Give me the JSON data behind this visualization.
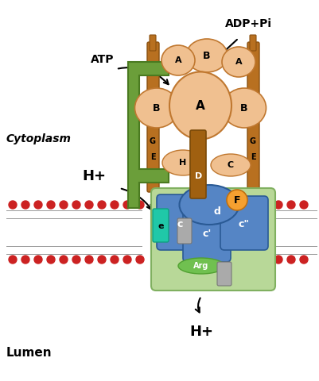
{
  "background_color": "#ffffff",
  "lipid_line_color": "#999999",
  "head_color": "#cc2222",
  "cytoplasm_label": "Cytoplasm",
  "lumen_label": "Lumen",
  "atp_label": "ATP",
  "adppi_label": "ADP+Pi",
  "hplus_top_label": "H+",
  "hplus_bottom_label": "H+",
  "subunit_color": "#f0c090",
  "subunit_edge": "#c07830",
  "stalk_color": "#a06010",
  "stalk_dark": "#7a4a08",
  "stator_color": "#6b9e3a",
  "stator_dark": "#4a7a20",
  "vo_color": "#5585c5",
  "vo_dark": "#2a5a95",
  "vo_light": "#7aaedf",
  "vo_base_color": "#b8d898",
  "vo_base_dark": "#80b060",
  "arg_color": "#70c050",
  "f_subunit_color": "#f5a030",
  "e_subunit_color": "#20c8a8",
  "gray_subunit": "#aaaaaa",
  "rod_color": "#b87020",
  "rod_edge": "#8a5010"
}
